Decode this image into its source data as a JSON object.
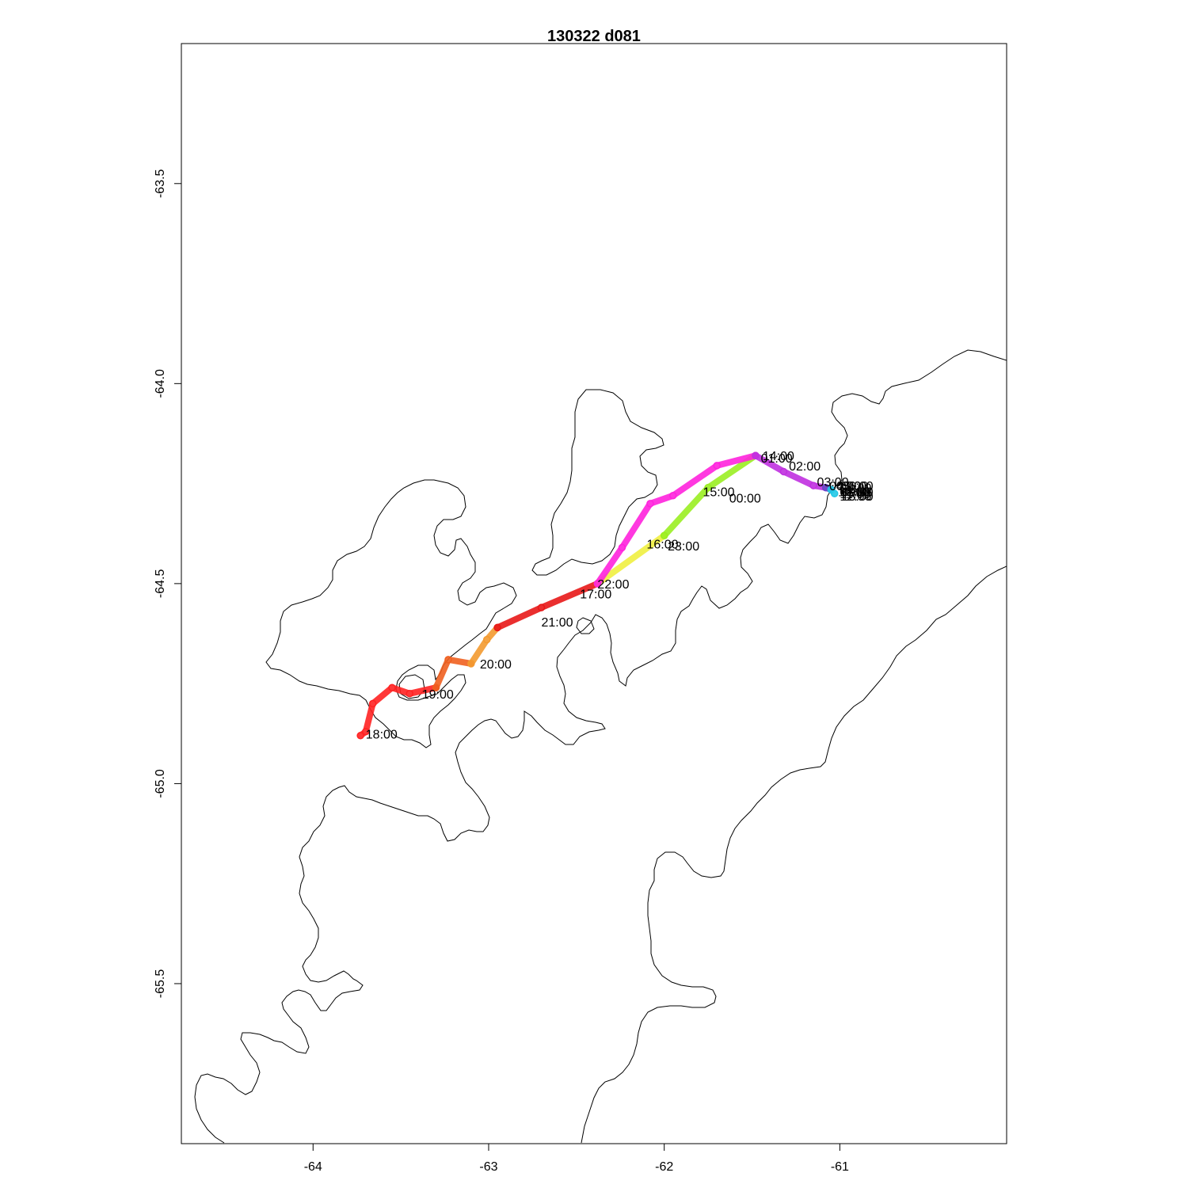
{
  "chart_data": {
    "type": "line",
    "title": "130322   d081",
    "xlabel": "",
    "ylabel": "",
    "xlim": [
      -64.75,
      -60.05
    ],
    "ylim": [
      -65.9,
      -63.15
    ],
    "xticks": [
      -64,
      -63,
      -62,
      -61
    ],
    "yticks": [
      -63.5,
      -64.0,
      -64.5,
      -65.0,
      -65.5
    ],
    "x_tick_labels": [
      "-64",
      "-63",
      "-62",
      "-61"
    ],
    "y_tick_labels": [
      "-63.5",
      "-64.0",
      "-64.5",
      "-65.0",
      "-65.5"
    ],
    "grid": false,
    "series": [
      {
        "color": "#ff2222",
        "points": [
          [
            -63.73,
            -64.88
          ],
          [
            -63.7,
            -64.87
          ],
          [
            -63.66,
            -64.8
          ],
          [
            -63.55,
            -64.76
          ],
          [
            -63.45,
            -64.775
          ],
          [
            -63.3,
            -64.76
          ]
        ]
      },
      {
        "color": "#f06020",
        "points": [
          [
            -63.3,
            -64.76
          ],
          [
            -63.23,
            -64.69
          ],
          [
            -63.1,
            -64.7
          ]
        ]
      },
      {
        "color": "#f39a30",
        "points": [
          [
            -63.1,
            -64.7
          ],
          [
            -63.01,
            -64.64
          ],
          [
            -62.95,
            -64.61
          ]
        ]
      },
      {
        "color": "#e81818",
        "points": [
          [
            -62.95,
            -64.61
          ],
          [
            -62.7,
            -64.56
          ],
          [
            -62.38,
            -64.5
          ]
        ]
      },
      {
        "color": "#f0f040",
        "points": [
          [
            -62.38,
            -64.5
          ],
          [
            -62.0,
            -64.38
          ]
        ]
      },
      {
        "color": "#9aee22",
        "points": [
          [
            -62.0,
            -64.38
          ],
          [
            -61.75,
            -64.26
          ],
          [
            -61.48,
            -64.18
          ]
        ]
      },
      {
        "color": "#ff22dd",
        "points": [
          [
            -62.38,
            -64.5
          ],
          [
            -62.24,
            -64.41
          ],
          [
            -62.08,
            -64.3
          ],
          [
            -61.95,
            -64.28
          ],
          [
            -61.7,
            -64.205
          ],
          [
            -61.48,
            -64.18
          ]
        ]
      },
      {
        "color": "#c030e0",
        "points": [
          [
            -61.48,
            -64.18
          ],
          [
            -61.32,
            -64.22
          ],
          [
            -61.15,
            -64.255
          ],
          [
            -61.08,
            -64.26
          ]
        ]
      },
      {
        "color": "#6a4ac8",
        "points": [
          [
            -61.08,
            -64.26
          ],
          [
            -61.05,
            -64.265
          ]
        ]
      },
      {
        "color": "#22c8e6",
        "points": [
          [
            -61.05,
            -64.265
          ],
          [
            -61.03,
            -64.275
          ]
        ]
      }
    ],
    "time_labels": [
      {
        "text": "18:00",
        "x": -63.7,
        "y": -64.875
      },
      {
        "text": "19:00",
        "x": -63.38,
        "y": -64.775
      },
      {
        "text": "20:00",
        "x": -63.05,
        "y": -64.7
      },
      {
        "text": "21:00",
        "x": -62.7,
        "y": -64.595
      },
      {
        "text": "17:00",
        "x": -62.48,
        "y": -64.525
      },
      {
        "text": "22:00",
        "x": -62.38,
        "y": -64.5
      },
      {
        "text": "16:00",
        "x": -62.1,
        "y": -64.4
      },
      {
        "text": "23:00",
        "x": -61.98,
        "y": -64.405
      },
      {
        "text": "15:00",
        "x": -61.78,
        "y": -64.27
      },
      {
        "text": "00:00",
        "x": -61.63,
        "y": -64.285
      },
      {
        "text": "14:00",
        "x": -61.44,
        "y": -64.18
      },
      {
        "text": "01:00",
        "x": -61.45,
        "y": -64.185
      },
      {
        "text": "02:00",
        "x": -61.29,
        "y": -64.205
      },
      {
        "text": "03:00",
        "x": -61.13,
        "y": -64.245
      },
      {
        "text": "04:00",
        "x": -61.06,
        "y": -64.255
      },
      {
        "text": "05:00",
        "x": -61.02,
        "y": -64.255
      },
      {
        "text": "06:00",
        "x": -60.99,
        "y": -64.255
      },
      {
        "text": "07:00",
        "x": -61.0,
        "y": -64.26
      },
      {
        "text": "08:00",
        "x": -61.0,
        "y": -64.27
      },
      {
        "text": "09:00",
        "x": -60.99,
        "y": -64.27
      },
      {
        "text": "10:00",
        "x": -61.01,
        "y": -64.27
      },
      {
        "text": "11:00",
        "x": -61.0,
        "y": -64.275
      },
      {
        "text": "12:00",
        "x": -61.0,
        "y": -64.28
      },
      {
        "text": "13:00",
        "x": -60.99,
        "y": -64.28
      }
    ]
  }
}
